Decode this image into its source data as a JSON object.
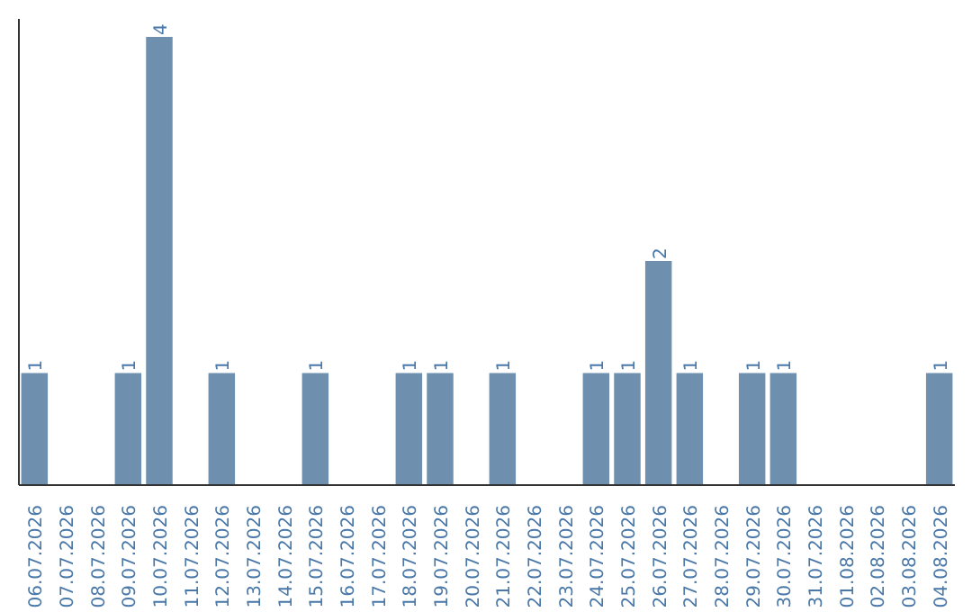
{
  "chart_data": {
    "type": "bar",
    "categories": [
      "06.07.2026",
      "07.07.2026",
      "08.07.2026",
      "09.07.2026",
      "10.07.2026",
      "11.07.2026",
      "12.07.2026",
      "13.07.2026",
      "14.07.2026",
      "15.07.2026",
      "16.07.2026",
      "17.07.2026",
      "18.07.2026",
      "19.07.2026",
      "20.07.2026",
      "21.07.2026",
      "22.07.2026",
      "23.07.2026",
      "24.07.2026",
      "25.07.2026",
      "26.07.2026",
      "27.07.2026",
      "28.07.2026",
      "29.07.2026",
      "30.07.2026",
      "31.07.2026",
      "01.08.2026",
      "02.08.2026",
      "03.08.2026",
      "04.08.2026"
    ],
    "values": [
      1,
      0,
      0,
      1,
      4,
      0,
      1,
      0,
      0,
      1,
      0,
      0,
      1,
      1,
      0,
      1,
      0,
      0,
      1,
      1,
      2,
      1,
      0,
      1,
      1,
      0,
      0,
      0,
      0,
      1
    ],
    "value_labels": [
      "1",
      null,
      null,
      "1",
      "4",
      null,
      "1",
      null,
      null,
      "1",
      null,
      null,
      "1",
      "1",
      null,
      "1",
      null,
      null,
      "1",
      "1",
      "2",
      "1",
      null,
      "1",
      "1",
      null,
      null,
      null,
      null,
      "1"
    ],
    "color": "#6e8fae",
    "grid": false,
    "tick_labels": "x"
  }
}
